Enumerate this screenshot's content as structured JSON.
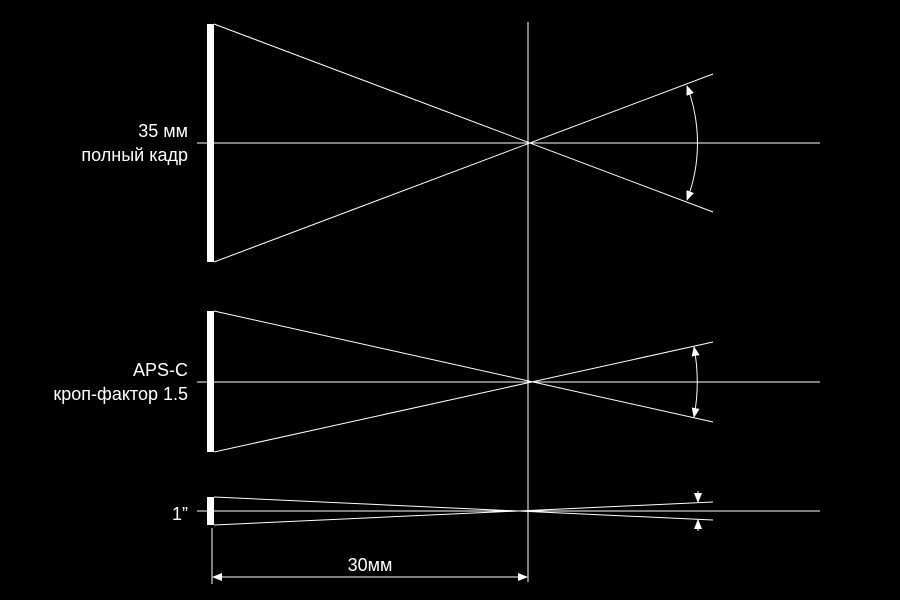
{
  "colors": {
    "background": "#000000",
    "lines": "#ffffff"
  },
  "sensors": [
    {
      "id": "full-frame",
      "line1": "35 мм",
      "line2": "полный кадр"
    },
    {
      "id": "aps-c",
      "line1": "APS-C",
      "line2": "кроп-фактор 1.5"
    },
    {
      "id": "one-inch",
      "line1": "1”"
    }
  ],
  "dimension": {
    "label": "30мм"
  }
}
